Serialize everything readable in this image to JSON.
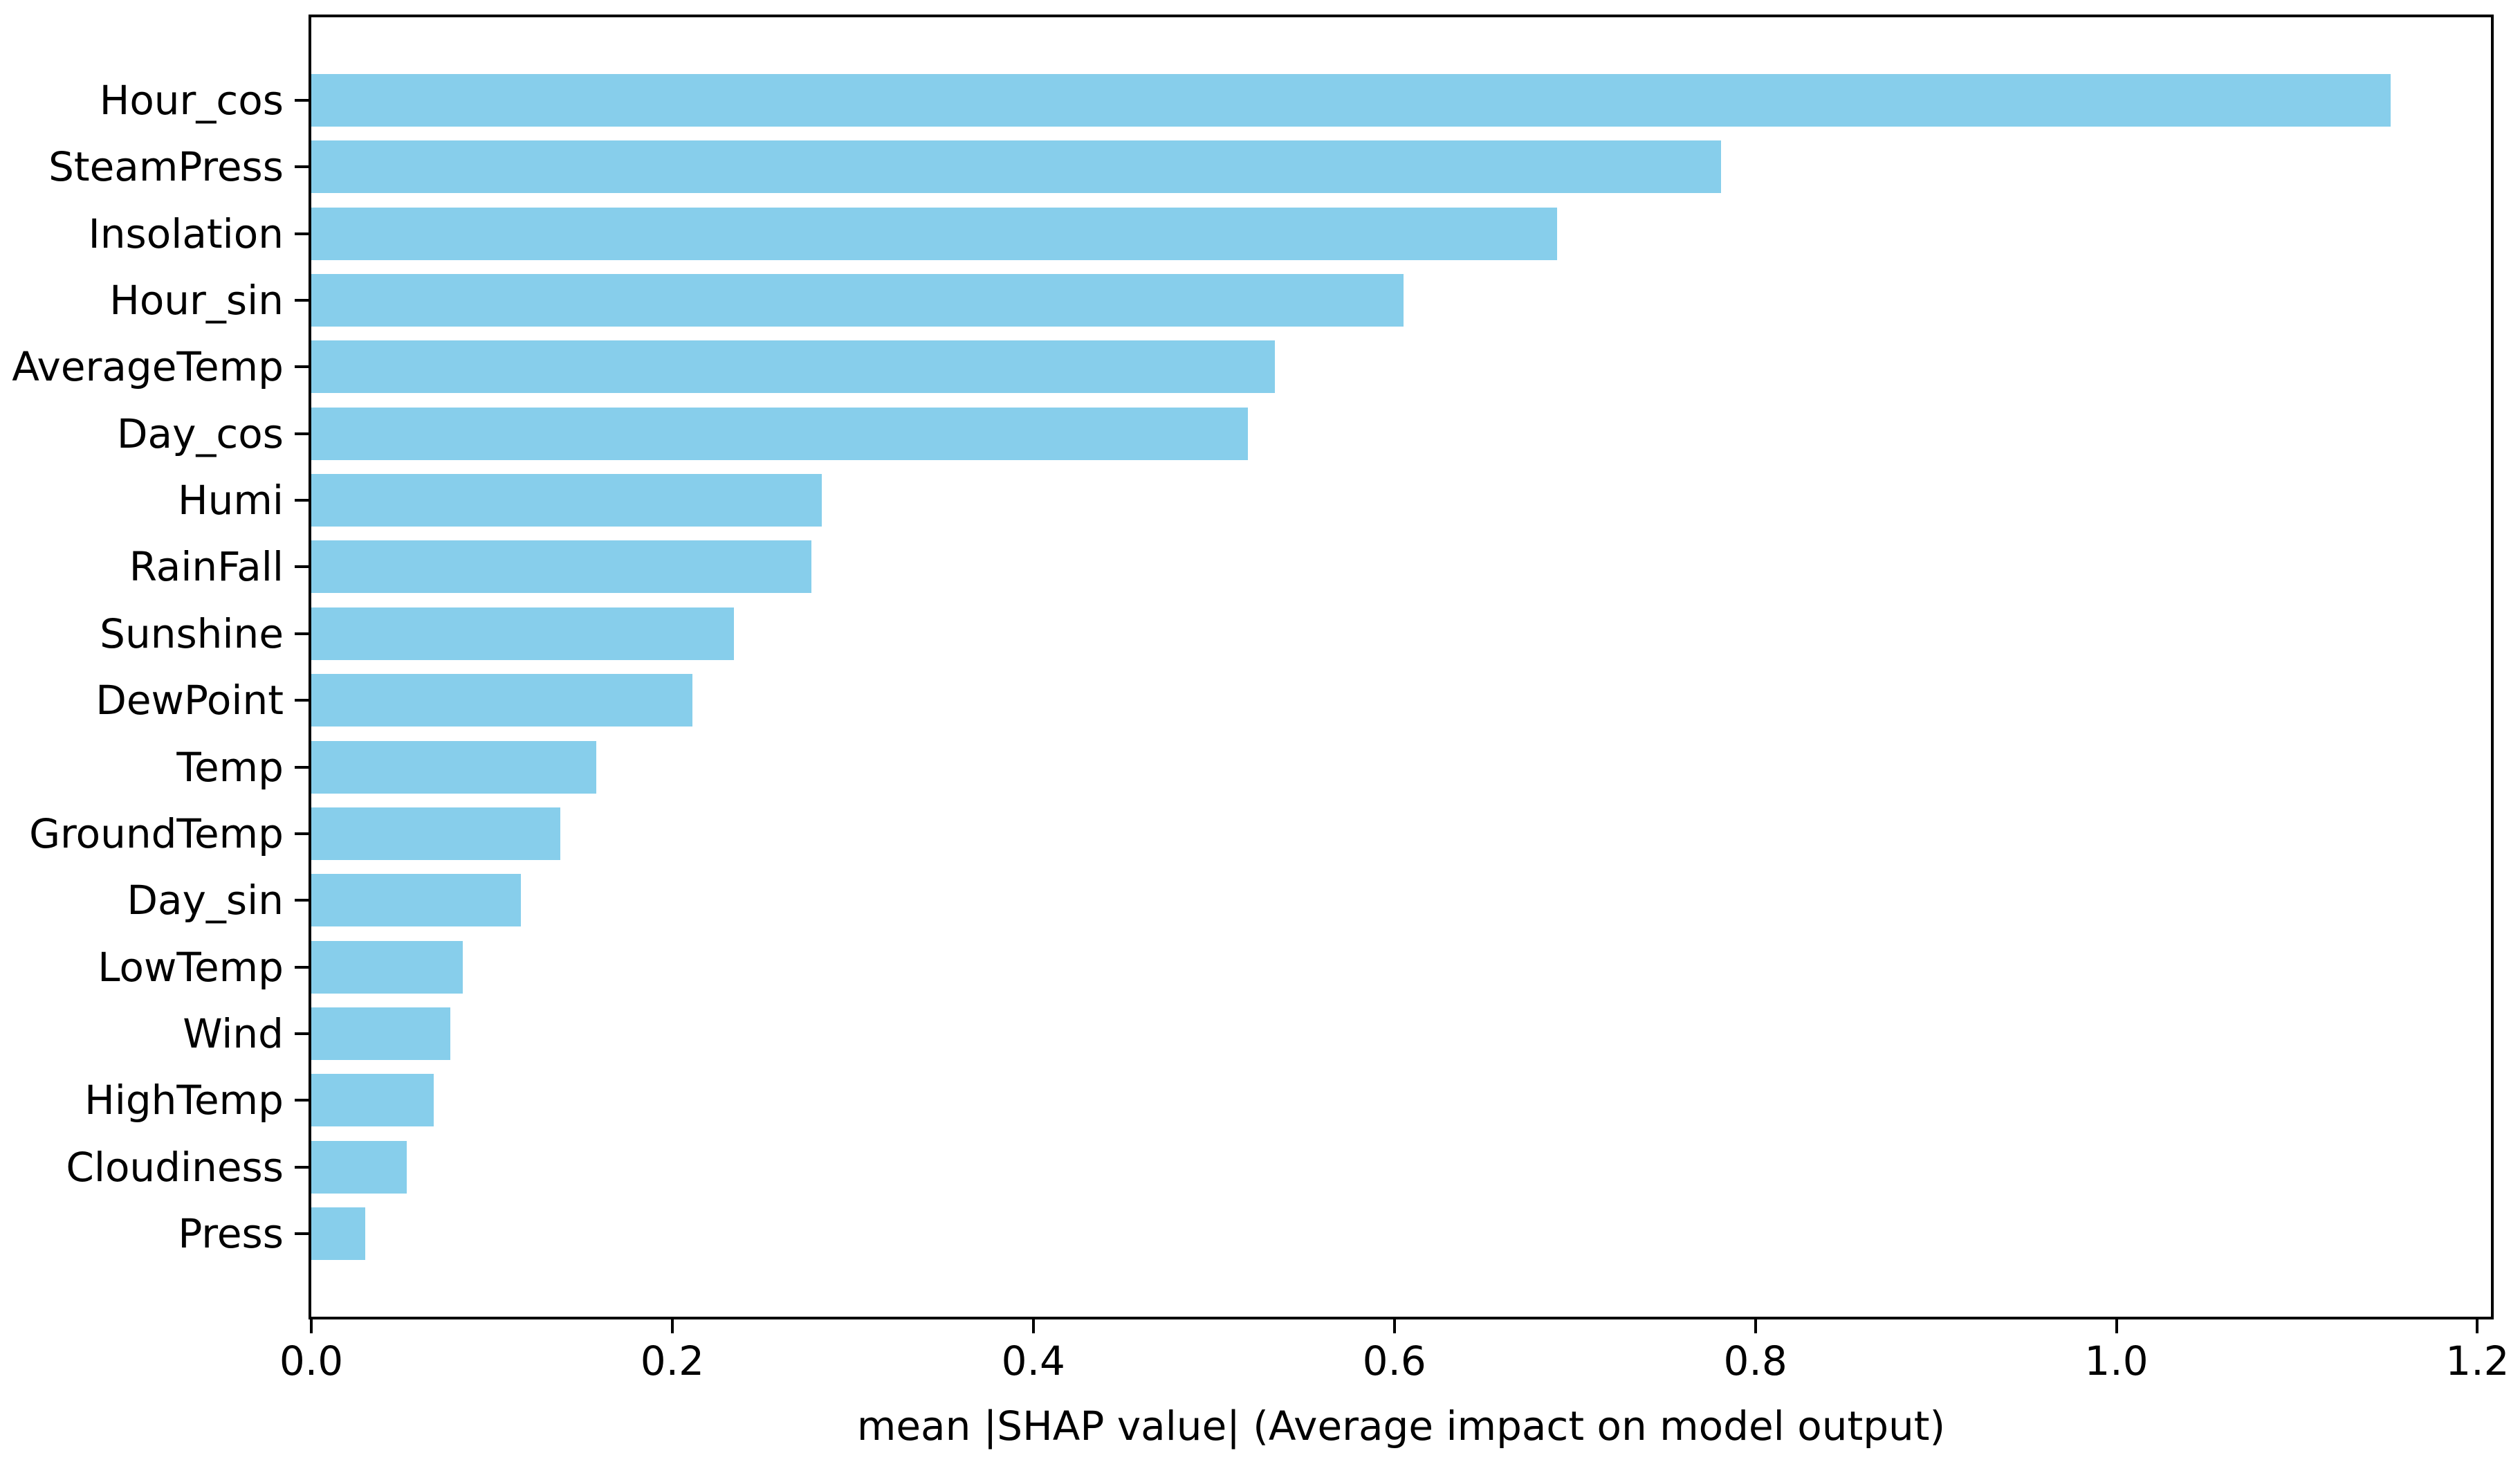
{
  "chart_data": {
    "type": "bar",
    "orientation": "horizontal",
    "title": "",
    "xlabel": "mean |SHAP value| (Average impact on model output)",
    "ylabel": "",
    "categories": [
      "Hour_cos",
      "SteamPress",
      "Insolation",
      "Hour_sin",
      "AverageTemp",
      "Day_cos",
      "Humi",
      "RainFall",
      "Sunshine",
      "DewPoint",
      "Temp",
      "GroundTemp",
      "Day_sin",
      "LowTemp",
      "Wind",
      "HighTemp",
      "Cloudiness",
      "Press"
    ],
    "values": [
      1.152,
      0.781,
      0.69,
      0.605,
      0.534,
      0.519,
      0.283,
      0.277,
      0.234,
      0.211,
      0.158,
      0.138,
      0.116,
      0.084,
      0.077,
      0.068,
      0.053,
      0.03
    ],
    "xlim": [
      0,
      1.2075
    ],
    "xticks": [
      0.0,
      0.2,
      0.4,
      0.6,
      0.8,
      1.0,
      1.2
    ],
    "xtick_labels": [
      "0.0",
      "0.2",
      "0.4",
      "0.6",
      "0.8",
      "1.0",
      "1.2"
    ],
    "bar_color": "#87CEEB",
    "axis_color": "#000000",
    "background": "#FFFFFF",
    "grid": false,
    "legend": null
  }
}
